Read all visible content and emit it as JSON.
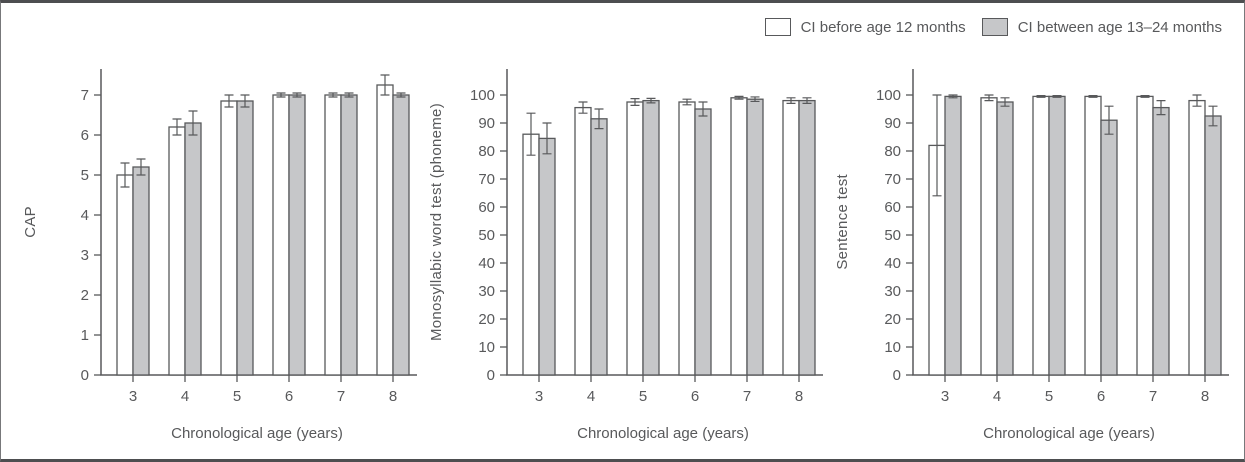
{
  "figure": {
    "text_color": "#58595b",
    "axis_color": "#58595b",
    "bar_white_fill": "#ffffff",
    "bar_gray_fill": "#c6c7c9",
    "frame_border_color": "#4d4e50"
  },
  "legend": {
    "items": [
      {
        "label": "CI before age 12 months",
        "swatch": "white"
      },
      {
        "label": "CI between age 13–24 months",
        "swatch": "gray"
      }
    ]
  },
  "chart_data": [
    {
      "type": "bar",
      "title": "",
      "ylabel": "CAP",
      "xlabel": "Chronological age (years)",
      "categories": [
        "3",
        "4",
        "5",
        "6",
        "7",
        "8"
      ],
      "yticks": [
        0,
        1,
        2,
        3,
        4,
        5,
        6,
        7
      ],
      "ylim": [
        0,
        7.8
      ],
      "grid": false,
      "legend_position": "shared-top-right",
      "series": [
        {
          "name": "CI before age 12 months",
          "fill": "white",
          "values": [
            5.0,
            6.2,
            6.85,
            7.0,
            7.0,
            7.25
          ],
          "errors": [
            0.3,
            0.2,
            0.15,
            0.05,
            0.05,
            0.25
          ]
        },
        {
          "name": "CI between age 13–24 months",
          "fill": "gray",
          "values": [
            5.2,
            6.3,
            6.85,
            7.0,
            7.0,
            7.0
          ],
          "errors": [
            0.2,
            0.3,
            0.15,
            0.05,
            0.05,
            0.05
          ]
        }
      ]
    },
    {
      "type": "bar",
      "title": "",
      "ylabel": "Monosyllabic word test (phoneme)",
      "xlabel": "Chronological age (years)",
      "categories": [
        "3",
        "4",
        "5",
        "6",
        "7",
        "8"
      ],
      "yticks": [
        0,
        10,
        20,
        30,
        40,
        50,
        60,
        70,
        80,
        90,
        100
      ],
      "ylim": [
        0,
        105
      ],
      "grid": false,
      "legend_position": "shared-top-right",
      "series": [
        {
          "name": "CI before age 12 months",
          "fill": "white",
          "values": [
            86,
            95.5,
            97.5,
            97.5,
            99,
            98
          ],
          "errors": [
            7.5,
            2,
            1.2,
            1,
            0.5,
            1
          ]
        },
        {
          "name": "CI between age 13–24 months",
          "fill": "gray",
          "values": [
            84.5,
            91.5,
            98,
            95,
            98.5,
            98
          ],
          "errors": [
            5.5,
            3.5,
            0.8,
            2.5,
            0.8,
            1
          ]
        }
      ]
    },
    {
      "type": "bar",
      "title": "",
      "ylabel": "Sentence test",
      "xlabel": "Chronological age (years)",
      "categories": [
        "3",
        "4",
        "5",
        "6",
        "7",
        "8"
      ],
      "yticks": [
        0,
        10,
        20,
        30,
        40,
        50,
        60,
        70,
        80,
        90,
        100
      ],
      "ylim": [
        0,
        105
      ],
      "grid": false,
      "legend_position": "shared-top-right",
      "series": [
        {
          "name": "CI before age 12 months",
          "fill": "white",
          "values": [
            82,
            99,
            99.5,
            99.5,
            99.5,
            98
          ],
          "errors": [
            18,
            1,
            0.3,
            0.3,
            0.3,
            2
          ]
        },
        {
          "name": "CI between age 13–24 months",
          "fill": "gray",
          "values": [
            99.5,
            97.5,
            99.5,
            91,
            95.5,
            92.5
          ],
          "errors": [
            0.5,
            1.5,
            0.3,
            5,
            2.5,
            3.5
          ]
        }
      ]
    }
  ]
}
